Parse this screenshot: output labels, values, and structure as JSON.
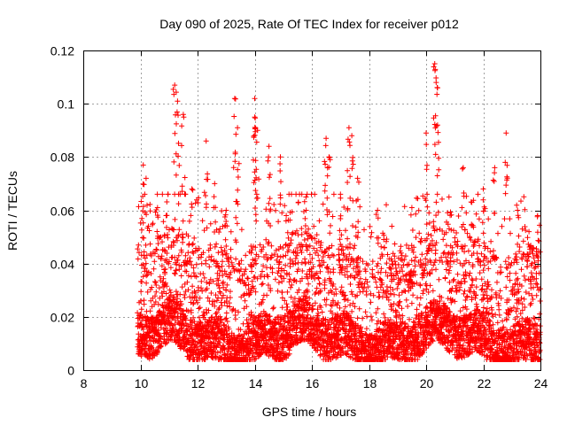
{
  "chart_data": {
    "type": "scatter",
    "title": "Day 090 of 2025, Rate Of TEC Index for receiver p012",
    "xlabel": "GPS time / hours",
    "ylabel": "ROTI / TECUs",
    "xlim": [
      8,
      24
    ],
    "ylim": [
      0,
      0.12
    ],
    "x_ticks": [
      "8",
      "10",
      "12",
      "14",
      "16",
      "18",
      "20",
      "22",
      "24"
    ],
    "y_ticks": [
      "0",
      "0.02",
      "0.04",
      "0.06",
      "0.08",
      "0.1",
      "0.12"
    ],
    "grid": true,
    "marker": "+",
    "point_color": "#ff0000",
    "data_x_range": [
      9.9,
      24
    ],
    "series": [
      {
        "peaks": [
          [
            10.1,
            0.077
          ],
          [
            10.2,
            0.072
          ],
          [
            10.6,
            0.061
          ],
          [
            10.9,
            0.058
          ],
          [
            11.2,
            0.107
          ],
          [
            11.3,
            0.101
          ],
          [
            11.5,
            0.096
          ],
          [
            11.8,
            0.068
          ],
          [
            12.3,
            0.086
          ],
          [
            12.6,
            0.07
          ],
          [
            13.0,
            0.06
          ],
          [
            13.3,
            0.102
          ],
          [
            13.4,
            0.091
          ],
          [
            14.0,
            0.102
          ],
          [
            14.0,
            0.095
          ],
          [
            14.1,
            0.09
          ],
          [
            14.5,
            0.084
          ],
          [
            14.9,
            0.08
          ],
          [
            15.2,
            0.066
          ],
          [
            15.8,
            0.06
          ],
          [
            16.5,
            0.087
          ],
          [
            16.6,
            0.08
          ],
          [
            17.0,
            0.066
          ],
          [
            17.3,
            0.091
          ],
          [
            17.4,
            0.088
          ],
          [
            17.6,
            0.072
          ],
          [
            18.3,
            0.06
          ],
          [
            18.8,
            0.054
          ],
          [
            19.5,
            0.061
          ],
          [
            20.0,
            0.089
          ],
          [
            20.3,
            0.115
          ],
          [
            20.35,
            0.108
          ],
          [
            20.4,
            0.092
          ],
          [
            20.8,
            0.065
          ],
          [
            21.3,
            0.076
          ],
          [
            21.6,
            0.063
          ],
          [
            22.0,
            0.068
          ],
          [
            22.4,
            0.076
          ],
          [
            22.8,
            0.089
          ],
          [
            23.2,
            0.06
          ],
          [
            23.6,
            0.052
          ],
          [
            23.9,
            0.058
          ]
        ]
      }
    ]
  }
}
